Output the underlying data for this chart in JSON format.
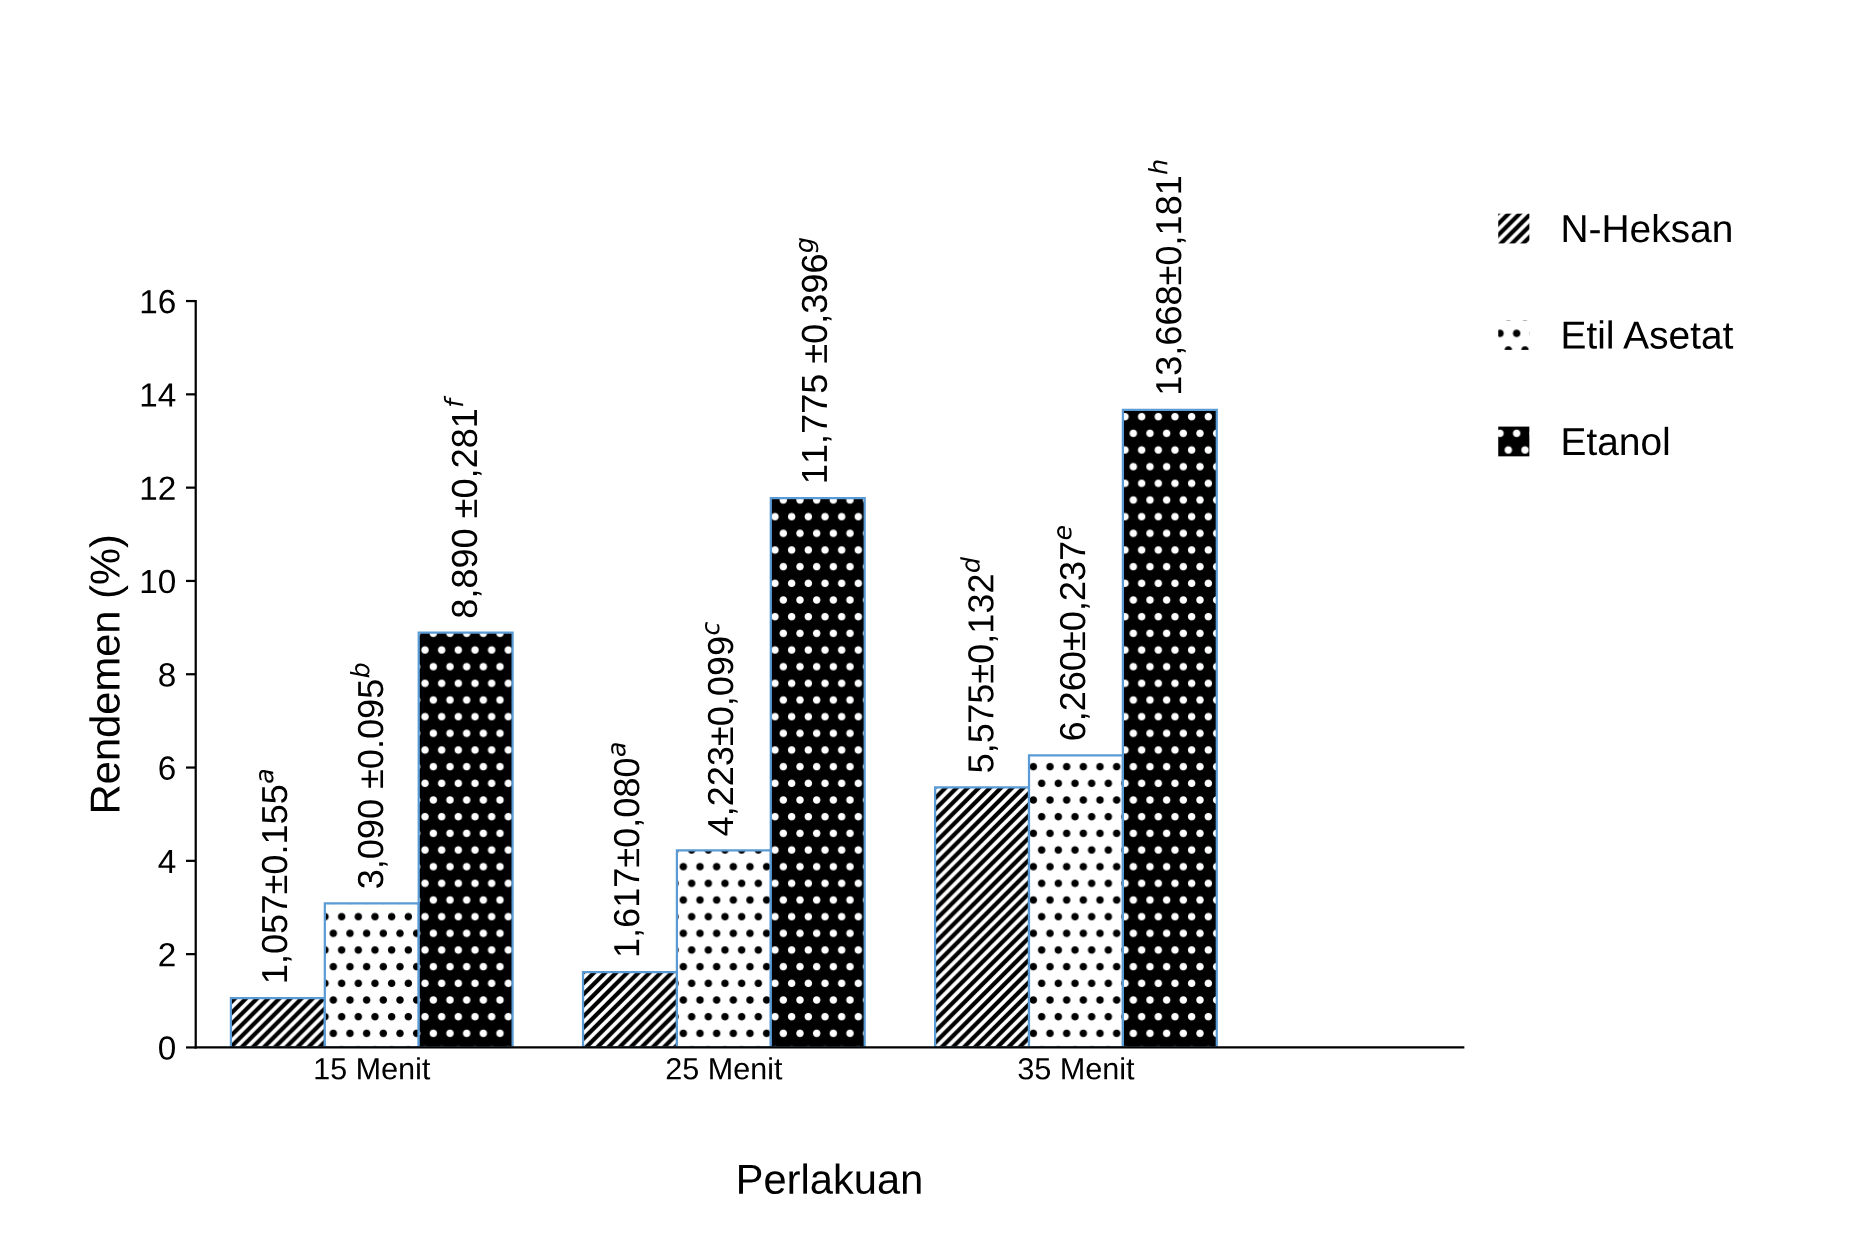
{
  "chart_data": {
    "type": "bar",
    "xlabel": "Perlakuan",
    "ylabel": "Rendemen (%)",
    "categories": [
      "15 Menit",
      "25 Menit",
      "35 Menit"
    ],
    "series": [
      {
        "name": "N-Heksan",
        "color": "#ffffff",
        "values": [
          1.057,
          1.617,
          5.575
        ],
        "value_labels": [
          "1,057±0.155$^{a}$",
          "1,617±0,080$^{a}$",
          "5,575±0,132$^{d}$"
        ]
      },
      {
        "name": "Etil Asetat",
        "color": "#ffffff",
        "values": [
          3.09,
          4.223,
          6.26
        ],
        "value_labels": [
          "3,090 ±0.095$^{b}$",
          "4,223±0,099$^{c}$",
          "6,260±0,237$^{e}$"
        ]
      },
      {
        "name": "Etanol",
        "color": "#000000",
        "values": [
          8.89,
          11.775,
          13.668
        ],
        "value_labels": [
          "8,890 ±0,281$^{f}$",
          "11,775 ±0,396$^{g}$",
          "13,668±0,181$^{h}$"
        ]
      }
    ],
    "ylim": [
      0,
      16
    ],
    "yticks": [
      0,
      2,
      4,
      6,
      8,
      10,
      12,
      14,
      16
    ],
    "grid": false,
    "legend": "right"
  }
}
